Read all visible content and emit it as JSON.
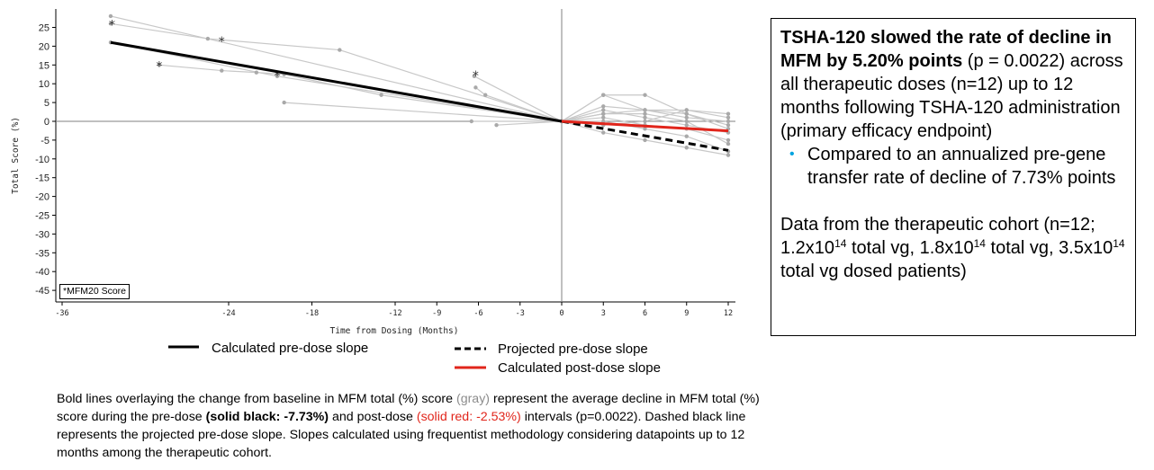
{
  "chart_data": {
    "type": "line",
    "xlabel": "Time from Dosing (Months)",
    "ylabel": "Total Score (%)",
    "xlim": [
      -36,
      12
    ],
    "ylim": [
      -47,
      29
    ],
    "x_ticks": [
      "-36",
      "-24",
      "-18",
      "-12",
      "-9",
      "-6",
      "-3",
      "0",
      "3",
      "6",
      "9",
      "12"
    ],
    "y_ticks": [
      "25",
      "20",
      "15",
      "10",
      "5",
      "0",
      "-5",
      "-10",
      "-15",
      "-20",
      "-25",
      "-30",
      "-35",
      "-40",
      "-45"
    ],
    "grid": false,
    "reference_lines": {
      "x": 0,
      "y": 0
    },
    "note": "*MFM20 Score",
    "series": [
      {
        "name": "Calculated pre-dose slope",
        "color": "#000000",
        "style": "solid",
        "x": [
          -32.5,
          0
        ],
        "y": [
          21,
          0
        ]
      },
      {
        "name": "Projected pre-dose slope",
        "color": "#000000",
        "style": "dashed",
        "x": [
          0,
          12
        ],
        "y": [
          0,
          -7.73
        ]
      },
      {
        "name": "Calculated post-dose slope",
        "color": "#e1251b",
        "style": "solid",
        "x": [
          0,
          12
        ],
        "y": [
          0,
          -2.53
        ]
      }
    ],
    "patient_lines": [
      {
        "x": [
          -32.5,
          0,
          3,
          6,
          9,
          12
        ],
        "y": [
          28,
          0,
          3,
          1,
          -1,
          -3
        ]
      },
      {
        "x": [
          -32.5,
          -25.5,
          -16,
          0,
          3,
          6,
          9,
          12
        ],
        "y": [
          26,
          22,
          19,
          0,
          7,
          7,
          2,
          -2
        ]
      },
      {
        "x": [
          -32.5,
          -20.5,
          0,
          3,
          6,
          9,
          12
        ],
        "y": [
          21,
          12,
          0,
          2,
          3,
          3,
          1
        ]
      },
      {
        "x": [
          -29,
          -24.5,
          -22,
          -20,
          -13,
          0,
          3,
          6,
          9,
          12
        ],
        "y": [
          15,
          13.5,
          13,
          12.5,
          7,
          0,
          -1,
          0,
          3,
          2
        ]
      },
      {
        "x": [
          -20,
          0,
          3,
          6,
          9,
          12
        ],
        "y": [
          5,
          0,
          1,
          -1,
          -2,
          -5
        ]
      },
      {
        "x": [
          -6.3,
          0,
          3,
          6,
          9,
          12
        ],
        "y": [
          12,
          0,
          -3,
          -5,
          -7,
          -9
        ]
      },
      {
        "x": [
          -6.2,
          -5.5,
          0,
          3,
          6,
          9,
          12
        ],
        "y": [
          9,
          7,
          0,
          7,
          3,
          2,
          -1
        ]
      },
      {
        "x": [
          -6.5,
          0,
          3,
          6,
          9,
          12
        ],
        "y": [
          0,
          0,
          2,
          2,
          0,
          -6
        ]
      },
      {
        "x": [
          -4.7,
          0,
          3,
          6,
          9,
          12
        ],
        "y": [
          -1,
          0,
          0,
          -2,
          -4,
          -8
        ]
      },
      {
        "x": [
          0,
          3,
          6,
          9,
          12
        ],
        "y": [
          0,
          4,
          3,
          1,
          0
        ]
      }
    ],
    "asterisk_points": [
      {
        "x": [
          -32.4,
          -29.0,
          -24.5,
          -20.5,
          -6.2
        ],
        "y": [
          26,
          15,
          21.5,
          12.5,
          12.5
        ]
      }
    ]
  },
  "legend": {
    "pre_dose": "Calculated pre-dose slope",
    "projected": "Projected pre-dose slope",
    "post_dose": "Calculated post-dose slope"
  },
  "note_box": "*MFM20 Score",
  "caption": {
    "part1": "Bold lines overlaying the change from baseline in MFM total (%) score ",
    "gray": "(gray)",
    "part2": " represent the average decline in MFM total (%) score during the pre-dose ",
    "black_bold": "(solid black: -7.73%)",
    "part3": " and post-dose ",
    "red": "(solid red: -2.53%)",
    "part4": " intervals (p=0.0022). Dashed black line represents the projected pre-dose slope. Slopes calculated using frequentist methodology considering datapoints up to 12 months among the therapeutic cohort."
  },
  "info": {
    "headline_bold": "TSHA-120 slowed the rate of decline in MFM by 5.20% points",
    "headline_rest": " (p = 0.0022) across all therapeutic doses (n=12) up to 12 months following TSHA-120 administration (primary efficacy endpoint)",
    "bullet_mark": "•",
    "bullet": "Compared to an annualized pre-gene transfer rate of decline of 7.73% points",
    "data_pre": "Data from the therapeutic cohort (n=12; 1.2x10",
    "exp1": "14",
    "data_mid1": " total vg, 1.8x10",
    "exp2": "14",
    "data_mid2": " total vg, 3.5x10",
    "exp3": "14",
    "data_post": " total vg dosed patients)"
  },
  "colors": {
    "patient_line": "#c8c8c8",
    "patient_point": "#a9a9a9",
    "post_dose": "#e1251b",
    "bullet": "#00a3e0"
  }
}
